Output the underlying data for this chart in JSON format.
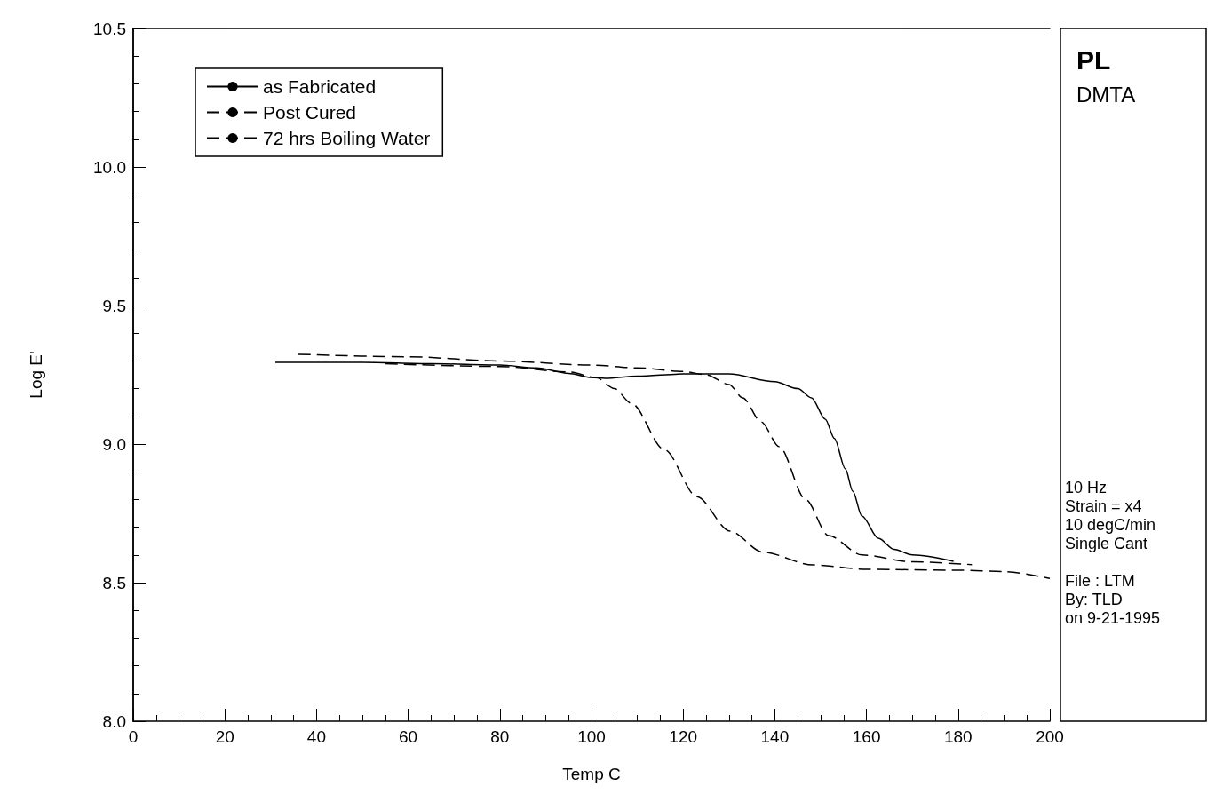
{
  "chart_data": {
    "type": "line",
    "title": "PL",
    "subtitle": "DMTA",
    "xlabel": "Temp C",
    "ylabel": "Log E'",
    "xlim": [
      0,
      200
    ],
    "xticks": [
      0,
      20,
      40,
      60,
      80,
      100,
      120,
      140,
      160,
      180,
      200
    ],
    "ylim": [
      8.0,
      10.5
    ],
    "yticks": [
      {
        "value": 8,
        "label": "8.0"
      },
      {
        "value": 8.5,
        "label": "8.5"
      },
      {
        "value": 9,
        "label": "9.0"
      },
      {
        "value": 9.5,
        "label": "9.5"
      },
      {
        "value": 10,
        "label": "10.0"
      },
      {
        "value": 10.5,
        "label": "10.5"
      }
    ],
    "grid": false,
    "legend": "top left",
    "marker": "none",
    "annotations": [
      "10 Hz\nStrain = x4\n10 degC/min\nSingle Cant",
      "File : LTM\nBy: TLD\non 9-21-1995"
    ],
    "series": [
      {
        "name": "as Fabricated",
        "color": "#000000",
        "line_style": "solid",
        "x": [
          31,
          50,
          65,
          80,
          88,
          95,
          100,
          103,
          110,
          120,
          130,
          140,
          145,
          148,
          151,
          153,
          155.4,
          157,
          159,
          162.6,
          166,
          170,
          179
        ],
        "values": [
          9.295,
          9.295,
          9.29,
          9.285,
          9.275,
          9.255,
          9.24,
          9.237,
          9.245,
          9.253,
          9.253,
          9.225,
          9.2,
          9.167,
          9.09,
          9.02,
          8.91,
          8.83,
          8.74,
          8.66,
          8.62,
          8.6,
          8.577
        ]
      },
      {
        "name": "Post Cured",
        "color": "#000000",
        "line_style": "dashed",
        "x": [
          55,
          80,
          95,
          101,
          105,
          108.7,
          115.9,
          123,
          130.2,
          137.4,
          148.3,
          160,
          180,
          190,
          200
        ],
        "values": [
          9.29,
          9.28,
          9.26,
          9.24,
          9.2,
          9.147,
          8.98,
          8.81,
          8.686,
          8.61,
          8.564,
          8.548,
          8.545,
          8.54,
          8.515
        ]
      },
      {
        "name": "72 hrs Boiling Water",
        "color": "#000000",
        "line_style": "dashed",
        "x": [
          36,
          60,
          80,
          100,
          110,
          120,
          125,
          130,
          133,
          137,
          141,
          146.7,
          151.7,
          159,
          170,
          183
        ],
        "values": [
          9.324,
          9.315,
          9.3,
          9.285,
          9.275,
          9.262,
          9.25,
          9.215,
          9.167,
          9.08,
          8.99,
          8.8,
          8.67,
          8.6,
          8.575,
          8.565
        ]
      }
    ]
  }
}
